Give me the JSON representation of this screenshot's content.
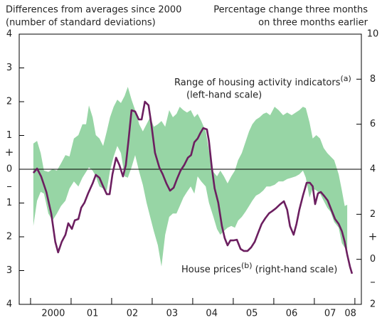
{
  "chart_data": {
    "type": "line",
    "y_title": [
      "Differences from averages since 2000",
      "(number of standard deviations)"
    ],
    "y2_title": [
      "Percentage change three months",
      "on three months earlier"
    ],
    "xlim": [
      1999.72,
      2008.16
    ],
    "xticks": [
      2000,
      2001,
      2002,
      2003,
      2004,
      2005,
      2006,
      2007,
      2008
    ],
    "x_labels": [
      {
        "value": 2000.56,
        "label": "2000"
      },
      {
        "value": 2001.53,
        "label": "01"
      },
      {
        "value": 2002.51,
        "label": "02"
      },
      {
        "value": 2003.49,
        "label": "03"
      },
      {
        "value": 2004.47,
        "label": "04"
      },
      {
        "value": 2005.46,
        "label": "05"
      },
      {
        "value": 2006.44,
        "label": "06"
      },
      {
        "value": 2007.39,
        "label": "07"
      },
      {
        "value": 2007.89,
        "label": "08"
      }
    ],
    "ylim": [
      -4,
      4
    ],
    "yticks": [
      4,
      3,
      2,
      1,
      0,
      {
        "value": -1,
        "label": "1"
      },
      {
        "value": -2,
        "label": "2"
      },
      {
        "value": -3,
        "label": "3"
      },
      {
        "value": -4,
        "label": "4"
      }
    ],
    "y2lim": [
      -2,
      10
    ],
    "y2ticks": [
      10,
      8,
      6,
      4,
      2,
      0,
      {
        "value": -2,
        "label": "2"
      }
    ],
    "sign_marks": {
      "y": [
        {
          "value": 0.5,
          "label": "+"
        },
        {
          "value": -0.5,
          "label": "–"
        }
      ],
      "y2": [
        {
          "value": 1,
          "label": "+"
        },
        {
          "value": -1,
          "label": "–"
        }
      ]
    },
    "zero_line": 0,
    "grid": false,
    "series": [
      {
        "name": "Range of housing activity indicators",
        "note_mark": "(a)",
        "scale_label": "(left-hand scale)",
        "kind": "band",
        "color": "#97d5a5",
        "axis": "y",
        "x": [
          2000.07,
          2000.16,
          2000.25,
          2000.33,
          2000.44,
          2000.54,
          2000.65,
          2000.75,
          2000.86,
          2000.96,
          2001.07,
          2001.18,
          2001.28,
          2001.37,
          2001.44,
          2001.53,
          2001.61,
          2001.7,
          2001.79,
          2001.88,
          2001.96,
          2002.05,
          2002.14,
          2002.23,
          2002.32,
          2002.4,
          2002.49,
          2002.58,
          2002.68,
          2002.77,
          2002.86,
          2002.95,
          2003.04,
          2003.14,
          2003.23,
          2003.32,
          2003.42,
          2003.51,
          2003.6,
          2003.68,
          2003.77,
          2003.86,
          2003.95,
          2004.04,
          2004.12,
          2004.21,
          2004.32,
          2004.4,
          2004.51,
          2004.6,
          2004.68,
          2004.77,
          2004.86,
          2004.95,
          2005.04,
          2005.12,
          2005.21,
          2005.3,
          2005.39,
          2005.47,
          2005.56,
          2005.65,
          2005.74,
          2005.82,
          2005.91,
          2006.02,
          2006.12,
          2006.23,
          2006.33,
          2006.44,
          2006.54,
          2006.63,
          2006.72,
          2006.79,
          2006.88,
          2006.96,
          2007.05,
          2007.14,
          2007.23,
          2007.32,
          2007.4,
          2007.49,
          2007.6,
          2007.68,
          2007.75,
          2007.81
        ],
        "upper": [
          0.76,
          0.84,
          0.48,
          -0.04,
          -0.08,
          0,
          -0.04,
          0.17,
          0.42,
          0.38,
          0.91,
          1.01,
          1.33,
          1.33,
          1.89,
          1.54,
          1.01,
          0.91,
          0.69,
          1.12,
          1.54,
          1.85,
          2.06,
          1.96,
          2.17,
          2.44,
          2.06,
          1.75,
          1.33,
          1.12,
          1.33,
          1.54,
          1.26,
          1.33,
          1.43,
          1.26,
          1.75,
          1.54,
          1.64,
          1.85,
          1.75,
          1.68,
          1.75,
          1.54,
          1.64,
          1.43,
          1.12,
          0.55,
          -0.08,
          -0.21,
          -0.04,
          -0.21,
          -0.42,
          -0.21,
          -0.04,
          0.27,
          0.48,
          0.8,
          1.12,
          1.33,
          1.47,
          1.54,
          1.64,
          1.68,
          1.6,
          1.85,
          1.75,
          1.6,
          1.68,
          1.6,
          1.68,
          1.75,
          1.85,
          1.81,
          1.39,
          0.91,
          1.01,
          0.91,
          0.63,
          0.48,
          0.38,
          0.27,
          -0.15,
          -0.63,
          -1.09,
          -1.05
        ],
        "lower": [
          -1.68,
          -0.93,
          -0.67,
          -0.72,
          -1.31,
          -1.52,
          -1.31,
          -1.09,
          -0.93,
          -0.57,
          -0.36,
          -0.51,
          -0.25,
          -0.08,
          0.06,
          -0.04,
          -0.21,
          -0.51,
          -0.57,
          -0.63,
          -0.04,
          0.38,
          0.69,
          0.48,
          -0.21,
          -0.25,
          0.06,
          0.42,
          -0.08,
          -0.46,
          -0.99,
          -1.41,
          -1.83,
          -2.25,
          -2.88,
          -1.94,
          -1.41,
          -1.31,
          -1.31,
          -1.09,
          -0.84,
          -0.67,
          -0.51,
          -0.72,
          -0.21,
          -0.36,
          -0.51,
          -0.99,
          -1.41,
          -1.77,
          -1.94,
          -1.83,
          -1.73,
          -1.68,
          -1.73,
          -1.52,
          -1.41,
          -1.26,
          -1.09,
          -0.93,
          -0.78,
          -0.72,
          -0.63,
          -0.51,
          -0.51,
          -0.46,
          -0.36,
          -0.36,
          -0.29,
          -0.25,
          -0.21,
          -0.15,
          -0.04,
          -0.25,
          -0.84,
          -0.57,
          -0.63,
          -0.72,
          -0.93,
          -1.14,
          -1.26,
          -1.56,
          -1.73,
          -2.19,
          -2.32,
          -2.36
        ]
      },
      {
        "name": "House prices",
        "note_mark": "(b)",
        "scale_label": "(right-hand scale)",
        "kind": "line",
        "color": "#6c1f60",
        "axis": "y2",
        "x": [
          2000.07,
          2000.16,
          2000.26,
          2000.39,
          2000.51,
          2000.61,
          2000.68,
          2000.77,
          2000.86,
          2000.93,
          2001.02,
          2001.09,
          2001.18,
          2001.25,
          2001.33,
          2001.42,
          2001.53,
          2001.61,
          2001.7,
          2001.79,
          2001.88,
          2001.95,
          2002.02,
          2002.11,
          2002.19,
          2002.28,
          2002.35,
          2002.42,
          2002.49,
          2002.58,
          2002.67,
          2002.74,
          2002.82,
          2002.91,
          2002.98,
          2003.07,
          2003.18,
          2003.26,
          2003.35,
          2003.44,
          2003.53,
          2003.61,
          2003.7,
          2003.79,
          2003.88,
          2003.96,
          2004.04,
          2004.12,
          2004.19,
          2004.26,
          2004.35,
          2004.4,
          2004.47,
          2004.54,
          2004.63,
          2004.72,
          2004.79,
          2004.86,
          2004.93,
          2005.0,
          2005.09,
          2005.18,
          2005.26,
          2005.35,
          2005.44,
          2005.53,
          2005.61,
          2005.7,
          2005.79,
          2005.88,
          2005.96,
          2006.05,
          2006.16,
          2006.25,
          2006.33,
          2006.4,
          2006.49,
          2006.56,
          2006.63,
          2006.72,
          2006.81,
          2006.89,
          2006.96,
          2007.02,
          2007.09,
          2007.16,
          2007.25,
          2007.33,
          2007.42,
          2007.51,
          2007.6,
          2007.68,
          2007.75,
          2007.81,
          2007.88,
          2007.93
        ],
        "values": [
          3.84,
          4.03,
          3.68,
          2.99,
          2.04,
          0.78,
          0.31,
          0.78,
          1.09,
          1.6,
          1.35,
          1.73,
          1.79,
          2.29,
          2.52,
          2.93,
          3.37,
          3.75,
          3.62,
          3.24,
          2.89,
          2.89,
          3.78,
          4.51,
          4.19,
          3.68,
          4.19,
          5.36,
          6.62,
          6.56,
          6.21,
          6.21,
          7.0,
          6.84,
          5.99,
          4.73,
          4.06,
          3.78,
          3.37,
          3.05,
          3.18,
          3.56,
          3.94,
          4.19,
          4.51,
          4.63,
          5.2,
          5.36,
          5.61,
          5.83,
          5.77,
          5.26,
          4.09,
          3.15,
          2.52,
          1.47,
          0.94,
          0.62,
          0.84,
          0.84,
          0.87,
          0.46,
          0.37,
          0.37,
          0.53,
          0.78,
          1.16,
          1.57,
          1.82,
          2.04,
          2.14,
          2.26,
          2.45,
          2.58,
          2.2,
          1.47,
          1.09,
          1.57,
          2.2,
          2.83,
          3.4,
          3.4,
          3.24,
          2.45,
          2.93,
          2.99,
          2.8,
          2.61,
          2.2,
          1.79,
          1.57,
          1.25,
          0.78,
          0.21,
          -0.33,
          -0.64
        ]
      }
    ]
  }
}
